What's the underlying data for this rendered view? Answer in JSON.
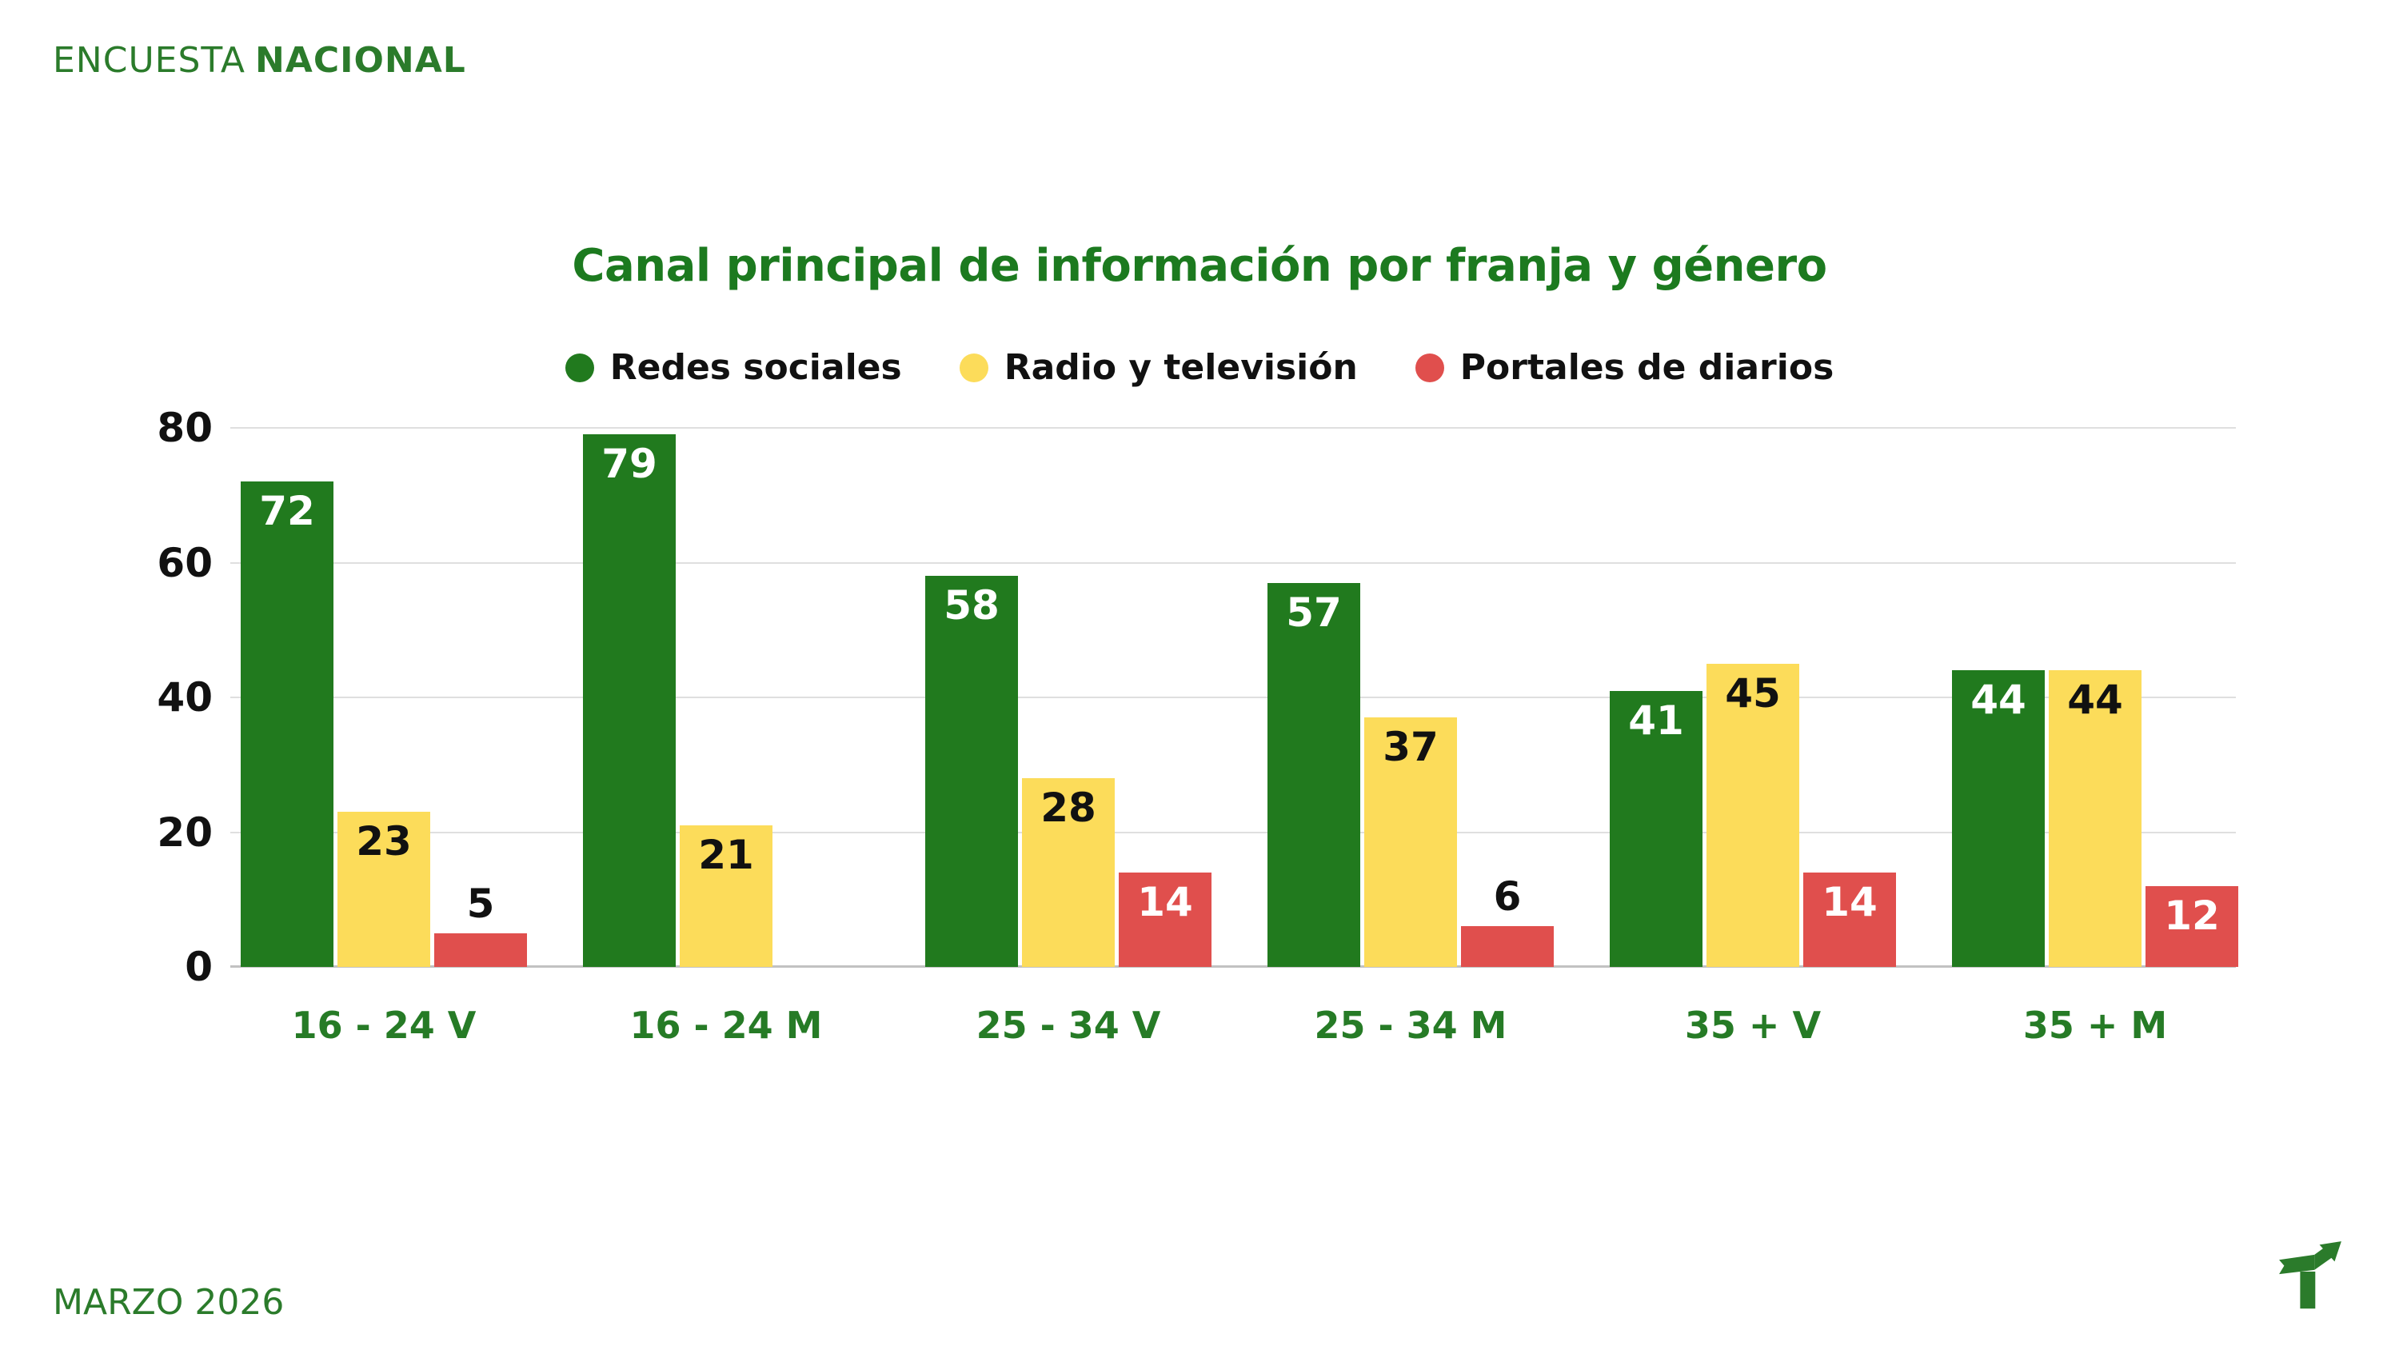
{
  "header": {
    "brand_regular": "ENCUESTA",
    "brand_bold": "NACIONAL"
  },
  "footer": {
    "date": "MARZO 2026"
  },
  "icons": {
    "logo": "trend-arrow-logo",
    "legend_marker": "circle"
  },
  "colors": {
    "brand_green": "#2B7B2B",
    "title_green": "#1C7A1F",
    "axis_label_green": "#267B26",
    "text_black": "#111111",
    "gridline": "#dfdfdf",
    "baseline": "#c2c2c2",
    "background": "#ffffff"
  },
  "chart_data": {
    "type": "bar",
    "title": "Canal principal de información por franja y género",
    "categories": [
      "16 - 24 V",
      "16 - 24 M",
      "25 - 34 V",
      "25 - 34 M",
      "35 + V",
      "35 + M"
    ],
    "series": [
      {
        "name": "Redes sociales",
        "color": "#217A1E",
        "label_color": "#ffffff",
        "values": [
          72,
          79,
          58,
          57,
          41,
          44
        ]
      },
      {
        "name": "Radio y televisión",
        "color": "#FCDC5A",
        "label_color": "#111111",
        "values": [
          23,
          21,
          28,
          37,
          45,
          44
        ]
      },
      {
        "name": "Portales de diarios",
        "color": "#E04F4D",
        "label_color": "#ffffff",
        "values": [
          5,
          null,
          14,
          6,
          14,
          12
        ]
      }
    ],
    "xlabel": "",
    "ylabel": "",
    "ylim": [
      0,
      80
    ],
    "yticks": [
      0,
      20,
      40,
      60,
      80
    ],
    "grid": true,
    "legend_position": "top",
    "value_labels": true
  }
}
